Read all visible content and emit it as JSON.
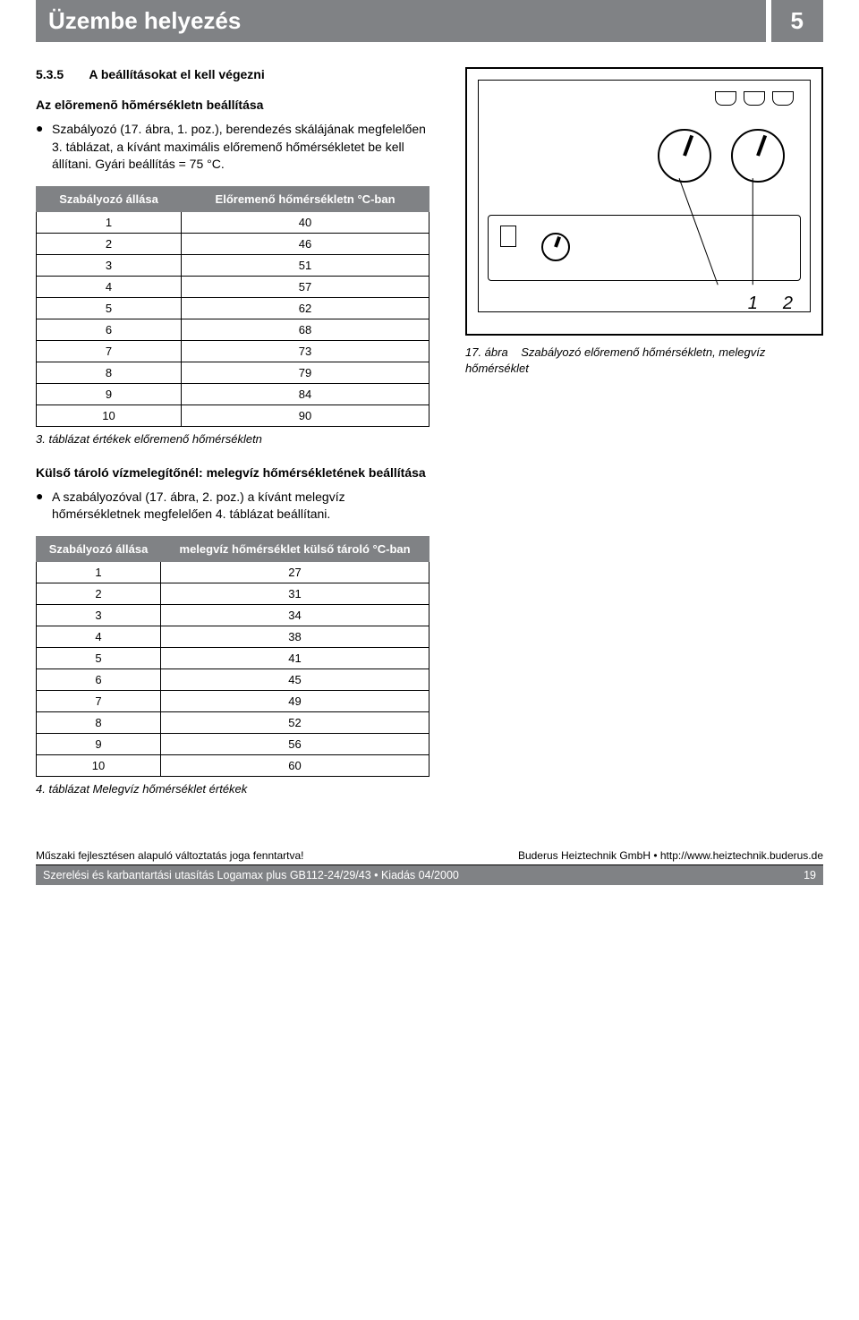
{
  "header": {
    "title": "Üzembe helyezés",
    "chapter": "5"
  },
  "section": {
    "number": "5.3.5",
    "title": "A beállításokat el kell végezni",
    "sub1_title": "Az elõremenõ hõmérsékletn beállítása",
    "bullet1": "Szabályozó (17. ábra, 1. poz.), berendezés skálájának megfelelően 3. táblázat, a kívánt maximális előremenő hőmérsékletet be kell állítani. Gyári beállítás = 75 °C.",
    "sub2_title": "Külső tároló vízmelegítőnél: melegvíz hőmérsékletének beállítása",
    "bullet2": "A szabályozóval (17. ábra, 2. poz.) a kívánt  melegvíz hőmérsékletnek megfelelően 4. táblázat beállítani."
  },
  "table1": {
    "col1_header": "Szabályozó állása",
    "col2_header": "Előremenő hőmérsékletn °C-ban",
    "rows": [
      [
        "1",
        "40"
      ],
      [
        "2",
        "46"
      ],
      [
        "3",
        "51"
      ],
      [
        "4",
        "57"
      ],
      [
        "5",
        "62"
      ],
      [
        "6",
        "68"
      ],
      [
        "7",
        "73"
      ],
      [
        "8",
        "79"
      ],
      [
        "9",
        "84"
      ],
      [
        "10",
        "90"
      ]
    ],
    "caption": "3. táblázat  értékek előremenő hőmérsékletn"
  },
  "table2": {
    "col1_header": "Szabályozó állása",
    "col2_header": "melegvíz hőmérséklet külső tároló °C-ban",
    "rows": [
      [
        "1",
        "27"
      ],
      [
        "2",
        "31"
      ],
      [
        "3",
        "34"
      ],
      [
        "4",
        "38"
      ],
      [
        "5",
        "41"
      ],
      [
        "6",
        "45"
      ],
      [
        "7",
        "49"
      ],
      [
        "8",
        "52"
      ],
      [
        "9",
        "56"
      ],
      [
        "10",
        "60"
      ]
    ],
    "caption": "4. táblázat  Melegvíz hőmérséklet értékek"
  },
  "figure": {
    "ref1": "1",
    "ref2": "2",
    "caption_num": "17. ábra",
    "caption_text": "Szabályozó  előremenő hőmérsékletn, melegvíz hőmérséklet"
  },
  "footer": {
    "left": "Műszaki fejlesztésen alapuló változtatás joga fenntartva!",
    "right": "Buderus Heiztechnik GmbH • http://www.heiztechnik.buderus.de",
    "line2_left": "Szerelési és karbantartási utasítás Logamax plus GB112-24/29/43 • Kiadás 04/2000",
    "line2_right": "19"
  },
  "colors": {
    "header_bg": "#808285",
    "header_fg": "#ffffff",
    "table_header_bg": "#808285",
    "border": "#000000"
  }
}
